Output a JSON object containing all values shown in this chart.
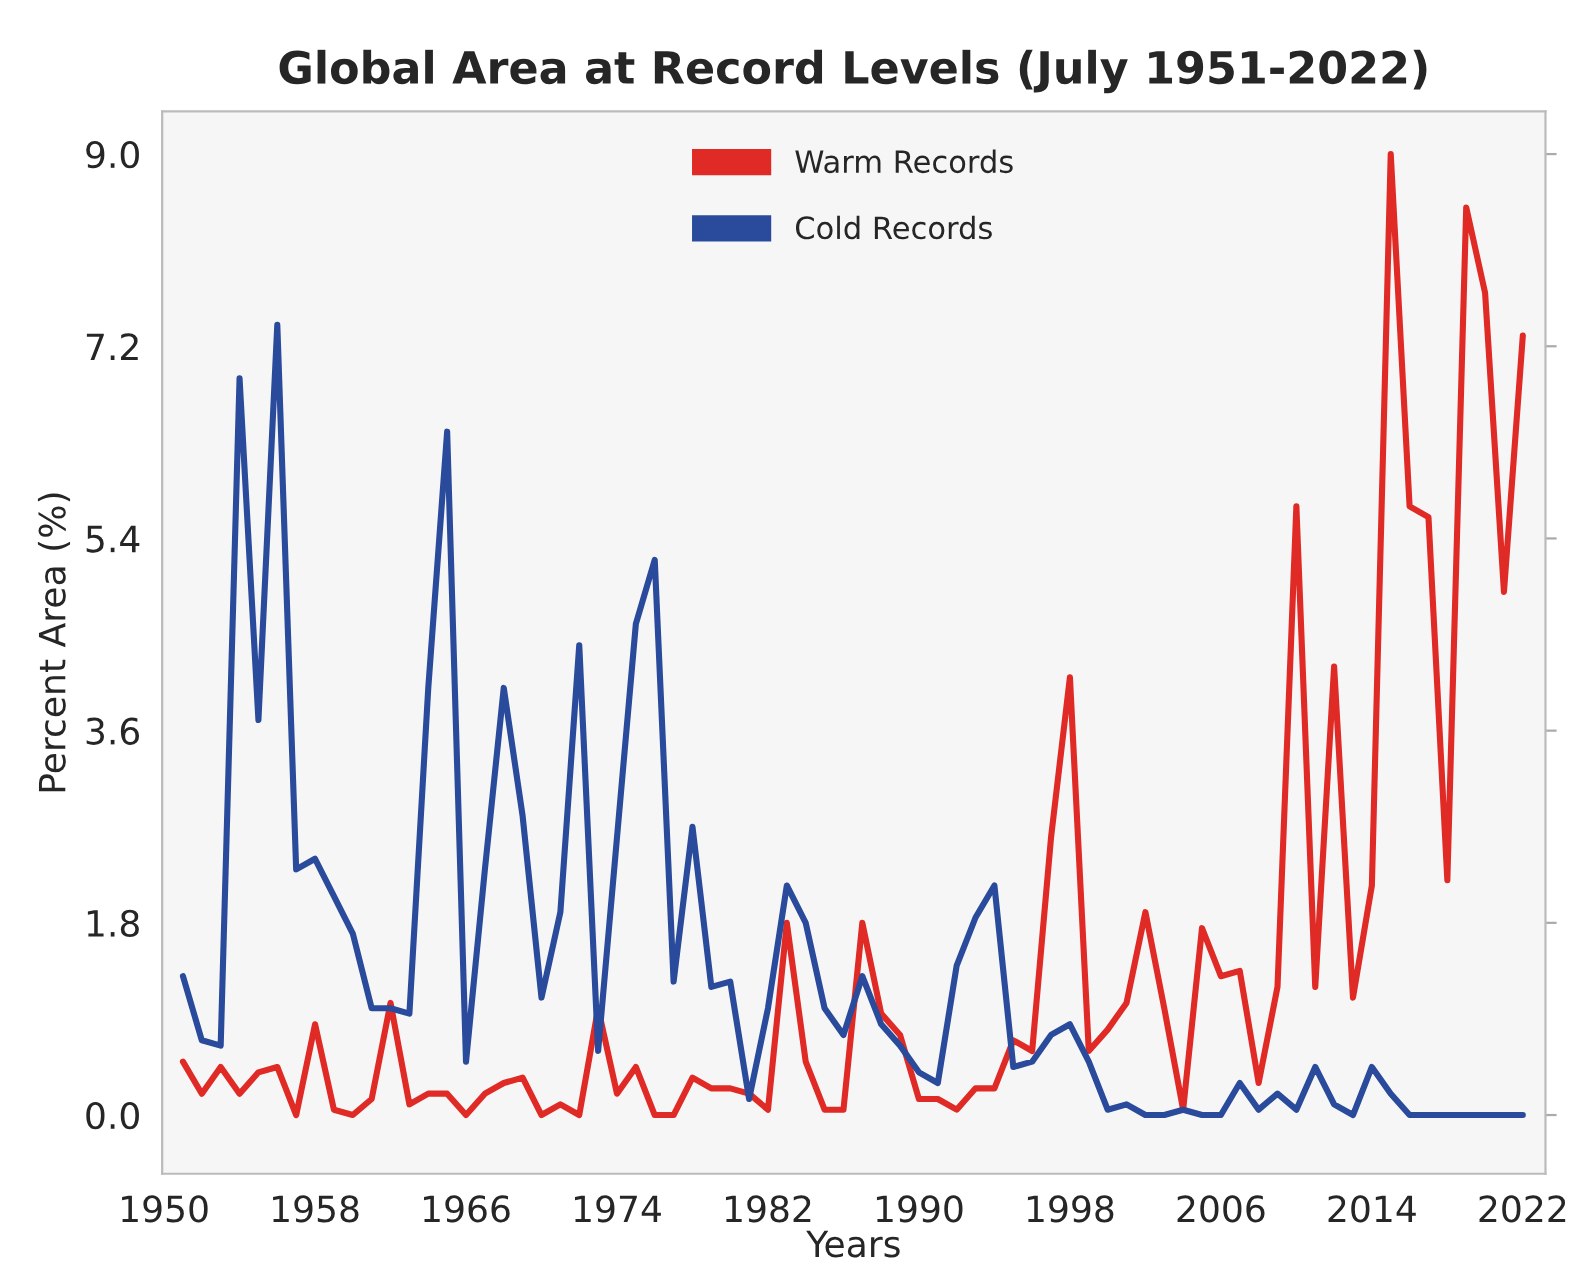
{
  "chart_data": {
    "type": "line",
    "title": "Global Area at Record Levels (July 1951-2022)",
    "xlabel": "Years",
    "ylabel": "Percent Area (%)",
    "x": [
      1951,
      1952,
      1953,
      1954,
      1955,
      1956,
      1957,
      1958,
      1959,
      1960,
      1961,
      1962,
      1963,
      1964,
      1965,
      1966,
      1967,
      1968,
      1969,
      1970,
      1971,
      1972,
      1973,
      1974,
      1975,
      1976,
      1977,
      1978,
      1979,
      1980,
      1981,
      1982,
      1983,
      1984,
      1985,
      1986,
      1987,
      1988,
      1989,
      1990,
      1991,
      1992,
      1993,
      1994,
      1995,
      1996,
      1997,
      1998,
      1999,
      2000,
      2001,
      2002,
      2003,
      2004,
      2005,
      2006,
      2007,
      2008,
      2009,
      2010,
      2011,
      2012,
      2013,
      2014,
      2015,
      2016,
      2017,
      2018,
      2019,
      2020,
      2021,
      2022
    ],
    "series": [
      {
        "name": "Warm Records",
        "color": "#e02a26",
        "values": [
          0.5,
          0.2,
          0.45,
          0.2,
          0.4,
          0.45,
          0.0,
          0.85,
          0.05,
          0.0,
          0.15,
          1.05,
          0.1,
          0.2,
          0.2,
          0.0,
          0.2,
          0.3,
          0.35,
          0.0,
          0.1,
          0.0,
          1.0,
          0.2,
          0.45,
          0.0,
          0.0,
          0.35,
          0.25,
          0.25,
          0.2,
          0.05,
          1.8,
          0.5,
          0.05,
          0.05,
          1.8,
          0.95,
          0.75,
          0.15,
          0.15,
          0.05,
          0.25,
          0.25,
          0.7,
          0.6,
          2.6,
          4.1,
          0.6,
          0.8,
          1.05,
          1.9,
          1.0,
          0.05,
          1.75,
          1.3,
          1.35,
          0.3,
          1.2,
          5.7,
          1.2,
          4.2,
          1.1,
          2.15,
          9.0,
          5.7,
          5.6,
          2.2,
          8.5,
          7.7,
          4.9,
          7.3
        ]
      },
      {
        "name": "Cold Records",
        "color": "#2a4b9b",
        "values": [
          1.3,
          0.7,
          0.65,
          6.9,
          3.7,
          7.4,
          2.3,
          2.4,
          2.05,
          1.7,
          1.0,
          1.0,
          0.95,
          4.0,
          6.4,
          0.5,
          2.3,
          4.0,
          2.8,
          1.1,
          1.9,
          4.4,
          0.6,
          2.6,
          4.6,
          5.2,
          1.25,
          2.7,
          1.2,
          1.25,
          0.15,
          1.0,
          2.15,
          1.8,
          1.0,
          0.75,
          1.3,
          0.85,
          0.65,
          0.4,
          0.3,
          1.4,
          1.85,
          2.15,
          0.45,
          0.5,
          0.75,
          0.85,
          0.5,
          0.05,
          0.1,
          0.0,
          0.0,
          0.05,
          0.0,
          0.0,
          0.3,
          0.05,
          0.2,
          0.05,
          0.45,
          0.1,
          0.0,
          0.45,
          0.2,
          0.0,
          0.0,
          0.0,
          0.0,
          0.0,
          0.0,
          0.0
        ]
      }
    ],
    "xlim": [
      1949.9,
      2023.2
    ],
    "xticks": [
      1950,
      1958,
      1966,
      1974,
      1982,
      1990,
      1998,
      2006,
      2014,
      2022
    ],
    "ylim": [
      -0.55,
      9.4
    ],
    "yticks": [
      {
        "value": 0,
        "label": "0.0"
      },
      1.8,
      3.6,
      5.4,
      7.2,
      {
        "value": 9,
        "label": "9.0"
      }
    ],
    "grid": false,
    "legend": "top",
    "line_style": "solid",
    "marker": "none"
  }
}
